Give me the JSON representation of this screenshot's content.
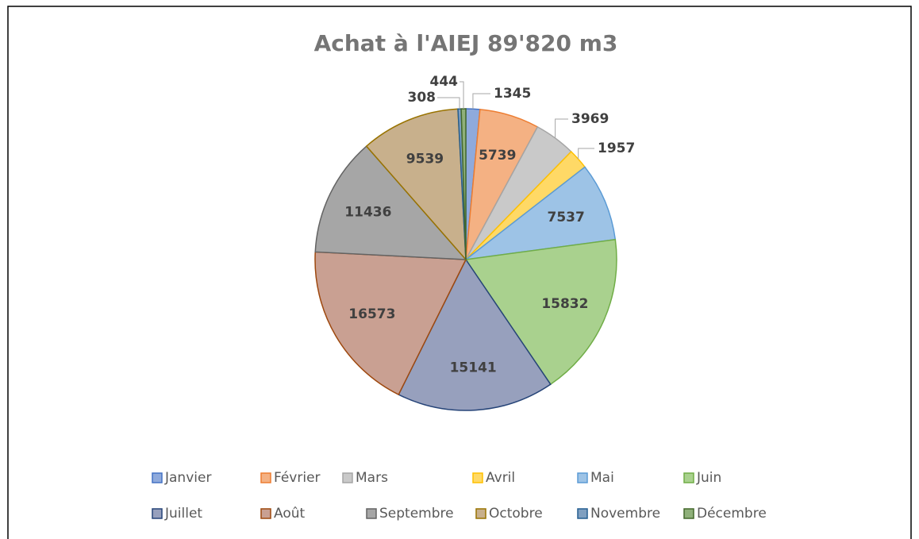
{
  "chart_data": {
    "type": "pie",
    "title": "Achat à l'AIEJ 89'820 m3",
    "categories": [
      "Janvier",
      "Février",
      "Mars",
      "Avril",
      "Mai",
      "Juin",
      "Juillet",
      "Août",
      "Septembre",
      "Octobre",
      "Novembre",
      "Décembre"
    ],
    "values": [
      1345,
      5739,
      3969,
      1957,
      7537,
      15832,
      15141,
      16573,
      11436,
      9539,
      308,
      444
    ],
    "colors": [
      "#8faadc",
      "#f4b183",
      "#c9c9c9",
      "#ffd966",
      "#9dc3e6",
      "#a9d18e",
      "#97a0bd",
      "#c9a092",
      "#a6a6a6",
      "#c8b08c",
      "#7f9fc0",
      "#8fb07a"
    ],
    "edge_colors": [
      "#4472c4",
      "#ed7d31",
      "#a5a5a5",
      "#ffc000",
      "#5b9bd5",
      "#70ad47",
      "#264478",
      "#9e480e",
      "#636363",
      "#997300",
      "#255e91",
      "#43682b"
    ],
    "legend": "bottom"
  }
}
